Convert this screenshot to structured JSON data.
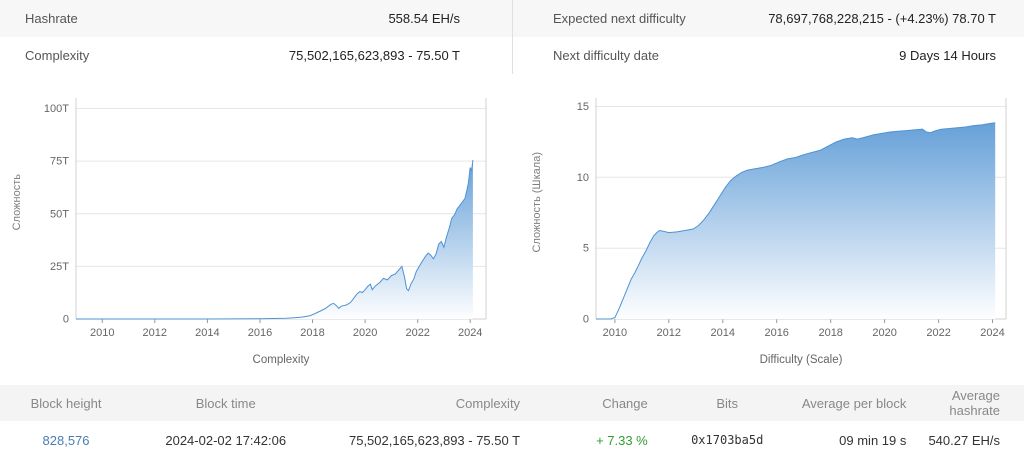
{
  "stats": {
    "left": [
      {
        "label": "Hashrate",
        "value": "558.54 EH/s"
      },
      {
        "label": "Complexity",
        "value": "75,502,165,623,893 - 75.50 T"
      }
    ],
    "right": [
      {
        "label": "Expected next difficulty",
        "value": "78,697,768,228,215 - (+4.23%) 78.70 T"
      },
      {
        "label": "Next difficulty date",
        "value": "9 Days 14 Hours"
      }
    ]
  },
  "chart_data": [
    {
      "type": "area",
      "title": "",
      "xlabel": "Complexity",
      "ylabel": "Сложность",
      "grid": "horizontal",
      "xlim": [
        2009,
        2024.6
      ],
      "ylim": [
        0,
        105
      ],
      "yticks": [
        [
          0,
          "0"
        ],
        [
          25,
          "25T"
        ],
        [
          50,
          "50T"
        ],
        [
          75,
          "75T"
        ],
        [
          100,
          "100T"
        ]
      ],
      "xticks": [
        [
          2010,
          "2010"
        ],
        [
          2012,
          "2012"
        ],
        [
          2014,
          "2014"
        ],
        [
          2016,
          "2016"
        ],
        [
          2018,
          "2018"
        ],
        [
          2020,
          "2020"
        ],
        [
          2022,
          "2022"
        ],
        [
          2024,
          "2024"
        ]
      ],
      "unit": "T (trillions of difficulty)",
      "series": [
        [
          2009,
          0
        ],
        [
          2010,
          0
        ],
        [
          2011,
          0
        ],
        [
          2012,
          0
        ],
        [
          2013,
          0
        ],
        [
          2014,
          0
        ],
        [
          2015,
          0.05
        ],
        [
          2016,
          0.15
        ],
        [
          2016.5,
          0.22
        ],
        [
          2017,
          0.4
        ],
        [
          2017.3,
          0.6
        ],
        [
          2017.6,
          0.9
        ],
        [
          2017.9,
          1.5
        ],
        [
          2018.1,
          2.6
        ],
        [
          2018.3,
          3.8
        ],
        [
          2018.5,
          5.1
        ],
        [
          2018.7,
          7.0
        ],
        [
          2018.8,
          7.4
        ],
        [
          2018.9,
          6.4
        ],
        [
          2019,
          5.1
        ],
        [
          2019.1,
          6.1
        ],
        [
          2019.3,
          6.7
        ],
        [
          2019.45,
          7.9
        ],
        [
          2019.55,
          9.6
        ],
        [
          2019.7,
          12.0
        ],
        [
          2019.8,
          13.0
        ],
        [
          2019.9,
          12.6
        ],
        [
          2020,
          13.9
        ],
        [
          2020.1,
          15.5
        ],
        [
          2020.2,
          16.6
        ],
        [
          2020.27,
          13.9
        ],
        [
          2020.4,
          15.8
        ],
        [
          2020.55,
          17.3
        ],
        [
          2020.7,
          19.3
        ],
        [
          2020.85,
          18.6
        ],
        [
          2021,
          20.6
        ],
        [
          2021.15,
          21.4
        ],
        [
          2021.3,
          23.6
        ],
        [
          2021.4,
          25.0
        ],
        [
          2021.5,
          19.9
        ],
        [
          2021.58,
          14.4
        ],
        [
          2021.65,
          13.5
        ],
        [
          2021.75,
          16.8
        ],
        [
          2021.85,
          18.9
        ],
        [
          2021.95,
          22.7
        ],
        [
          2022.05,
          24.8
        ],
        [
          2022.15,
          26.9
        ],
        [
          2022.3,
          29.9
        ],
        [
          2022.4,
          31.3
        ],
        [
          2022.5,
          30.3
        ],
        [
          2022.6,
          28.6
        ],
        [
          2022.7,
          31.0
        ],
        [
          2022.8,
          35.6
        ],
        [
          2022.9,
          36.8
        ],
        [
          2023,
          34.1
        ],
        [
          2023.1,
          39.2
        ],
        [
          2023.2,
          43.1
        ],
        [
          2023.3,
          47.9
        ],
        [
          2023.4,
          49.5
        ],
        [
          2023.5,
          52.3
        ],
        [
          2023.6,
          53.9
        ],
        [
          2023.7,
          55.6
        ],
        [
          2023.8,
          57.3
        ],
        [
          2023.87,
          61.0
        ],
        [
          2023.93,
          64.7
        ],
        [
          2024,
          72.0
        ],
        [
          2024.05,
          70.3
        ],
        [
          2024.1,
          75.5
        ]
      ]
    },
    {
      "type": "area",
      "title": "",
      "xlabel": "Difficulty (Scale)",
      "ylabel": "Сложность (Шкала)",
      "grid": "horizontal",
      "xlim": [
        2009.3,
        2024.5
      ],
      "ylim": [
        0,
        15.6
      ],
      "yticks": [
        [
          0,
          "0"
        ],
        [
          5,
          "5"
        ],
        [
          10,
          "10"
        ],
        [
          15,
          "15"
        ]
      ],
      "xticks": [
        [
          2010,
          "2010"
        ],
        [
          2012,
          "2012"
        ],
        [
          2014,
          "2014"
        ],
        [
          2016,
          "2016"
        ],
        [
          2018,
          "2018"
        ],
        [
          2020,
          "2020"
        ],
        [
          2022,
          "2022"
        ],
        [
          2024,
          "2024"
        ]
      ],
      "unit": "log10 of difficulty",
      "series": [
        [
          2009.3,
          0
        ],
        [
          2009.85,
          0
        ],
        [
          2010,
          0.1
        ],
        [
          2010.15,
          0.7
        ],
        [
          2010.3,
          1.4
        ],
        [
          2010.45,
          2.1
        ],
        [
          2010.6,
          2.8
        ],
        [
          2010.75,
          3.3
        ],
        [
          2010.9,
          3.9
        ],
        [
          2011,
          4.3
        ],
        [
          2011.15,
          4.8
        ],
        [
          2011.3,
          5.4
        ],
        [
          2011.45,
          5.9
        ],
        [
          2011.55,
          6.1
        ],
        [
          2011.65,
          6.25
        ],
        [
          2011.8,
          6.2
        ],
        [
          2012,
          6.1
        ],
        [
          2012.3,
          6.15
        ],
        [
          2012.6,
          6.25
        ],
        [
          2012.9,
          6.35
        ],
        [
          2013.1,
          6.6
        ],
        [
          2013.3,
          7.0
        ],
        [
          2013.5,
          7.5
        ],
        [
          2013.7,
          8.1
        ],
        [
          2013.9,
          8.7
        ],
        [
          2014.1,
          9.3
        ],
        [
          2014.3,
          9.8
        ],
        [
          2014.5,
          10.1
        ],
        [
          2014.7,
          10.35
        ],
        [
          2014.9,
          10.5
        ],
        [
          2015.2,
          10.6
        ],
        [
          2015.5,
          10.7
        ],
        [
          2015.8,
          10.85
        ],
        [
          2016.1,
          11.1
        ],
        [
          2016.4,
          11.3
        ],
        [
          2016.7,
          11.4
        ],
        [
          2017,
          11.6
        ],
        [
          2017.3,
          11.75
        ],
        [
          2017.6,
          11.9
        ],
        [
          2017.9,
          12.2
        ],
        [
          2018.2,
          12.5
        ],
        [
          2018.5,
          12.7
        ],
        [
          2018.8,
          12.8
        ],
        [
          2019,
          12.7
        ],
        [
          2019.3,
          12.85
        ],
        [
          2019.6,
          13.0
        ],
        [
          2019.9,
          13.1
        ],
        [
          2020.2,
          13.2
        ],
        [
          2020.5,
          13.25
        ],
        [
          2020.8,
          13.3
        ],
        [
          2021.1,
          13.35
        ],
        [
          2021.4,
          13.4
        ],
        [
          2021.55,
          13.2
        ],
        [
          2021.7,
          13.15
        ],
        [
          2021.9,
          13.3
        ],
        [
          2022.1,
          13.4
        ],
        [
          2022.4,
          13.45
        ],
        [
          2022.7,
          13.5
        ],
        [
          2023,
          13.55
        ],
        [
          2023.3,
          13.65
        ],
        [
          2023.6,
          13.7
        ],
        [
          2023.9,
          13.8
        ],
        [
          2024.1,
          13.85
        ]
      ]
    }
  ],
  "table": {
    "headers": [
      "Block height",
      "Block time",
      "Complexity",
      "Change",
      "Bits",
      "Average per block",
      "Average hashrate"
    ],
    "rows": [
      [
        "828,576",
        "2024-02-02 17:42:06",
        "75,502,165,623,893 - 75.50 T",
        "+ 7.33 %",
        "0x1703ba5d",
        "09 min 19 s",
        "540.27 EH/s"
      ]
    ]
  },
  "colors": {
    "accent_blue": "#4a7db6",
    "positive_green": "#2f9e2f",
    "line": "#4e93d4",
    "area_top": "#66a0d8",
    "area_bottom": "#fdfeff",
    "grid": "#e6e6e6",
    "axis": "#d0d0d0",
    "header_bg": "#f4f4f4",
    "stat_row_bg": "#f7f7f7"
  }
}
